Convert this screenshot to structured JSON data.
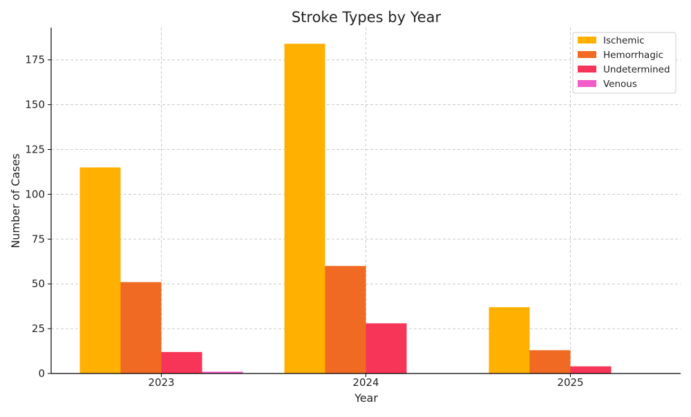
{
  "chart_data": {
    "type": "bar",
    "title": "Stroke Types by Year",
    "xlabel": "Year",
    "ylabel": "Number of Cases",
    "categories": [
      "2023",
      "2024",
      "2025"
    ],
    "ylim": [
      0,
      193
    ],
    "yticks": [
      0,
      25,
      50,
      75,
      100,
      125,
      150,
      175
    ],
    "grid": true,
    "legend_position": "top-right",
    "series": [
      {
        "name": "Ischemic",
        "color": "#FFB000",
        "values": [
          115,
          184,
          37
        ]
      },
      {
        "name": "Hemorrhagic",
        "color": "#F06A23",
        "values": [
          51,
          60,
          13
        ]
      },
      {
        "name": "Undetermined",
        "color": "#F73558",
        "values": [
          12,
          28,
          4
        ]
      },
      {
        "name": "Venous",
        "color": "#F25CC8",
        "values": [
          1,
          0,
          0
        ]
      }
    ]
  }
}
